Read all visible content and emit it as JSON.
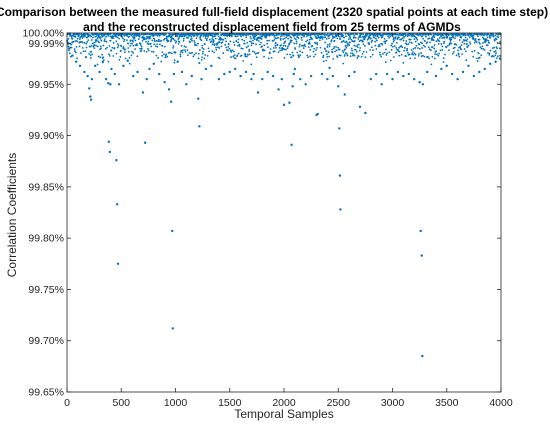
{
  "chart_data": {
    "type": "scatter",
    "title_lines": [
      "Comparison between the measured full-field displacement (2320 spatial points at each time step)",
      "and the reconstructed displacement field from 25 terms of AGMDs"
    ],
    "xlabel": "Temporal Samples",
    "ylabel": "Correlation Coefficients",
    "xlim": [
      0,
      4000
    ],
    "ylim": [
      99.65,
      100.0
    ],
    "xticks": [
      0,
      500,
      1000,
      1500,
      2000,
      2500,
      3000,
      3500,
      4000
    ],
    "xtick_labels": [
      "0",
      "500",
      "1000",
      "1500",
      "2000",
      "2500",
      "3000",
      "3500",
      "4000"
    ],
    "yticks": [
      99.65,
      99.7,
      99.75,
      99.8,
      99.85,
      99.9,
      99.95,
      99.99,
      100.0
    ],
    "ytick_labels": [
      "99.65%",
      "99.70%",
      "99.75%",
      "99.80%",
      "99.85%",
      "99.90%",
      "99.95%",
      "99.99%",
      "100.00%"
    ],
    "grid": false,
    "color": "#0072BD",
    "series": [
      {
        "name": "",
        "note_dense_band": "most samples lie between 99.975% and 99.999%",
        "x": [
          20,
          50,
          85,
          120,
          160,
          190,
          205,
          215,
          222,
          230,
          260,
          300,
          330,
          360,
          380,
          385,
          395,
          400,
          410,
          440,
          455,
          462,
          470,
          480,
          520,
          560,
          610,
          650,
          700,
          720,
          735,
          760,
          800,
          850,
          900,
          940,
          960,
          970,
          975,
          985,
          1020,
          1060,
          1100,
          1150,
          1210,
          1220,
          1240,
          1280,
          1330,
          1400,
          1450,
          1500,
          1550,
          1600,
          1650,
          1700,
          1720,
          1760,
          1800,
          1850,
          1900,
          1950,
          1980,
          2000,
          2050,
          2070,
          2080,
          2090,
          2100,
          2150,
          2200,
          2250,
          2300,
          2310,
          2350,
          2400,
          2420,
          2450,
          2500,
          2510,
          2515,
          2520,
          2560,
          2600,
          2650,
          2700,
          2750,
          2800,
          2850,
          2900,
          2950,
          3000,
          3050,
          3100,
          3150,
          3200,
          3250,
          3260,
          3270,
          3275,
          3280,
          3320,
          3400,
          3450,
          3500,
          3550,
          3600,
          3650,
          3700,
          3750,
          3800,
          3850,
          3900,
          3950,
          3990
        ],
        "y": [
          99.985,
          99.978,
          99.972,
          99.968,
          99.962,
          99.958,
          99.946,
          99.938,
          99.935,
          99.955,
          99.968,
          99.962,
          99.972,
          99.955,
          99.951,
          99.894,
          99.884,
          99.95,
          99.965,
          99.96,
          99.876,
          99.833,
          99.775,
          99.95,
          99.968,
          99.973,
          99.958,
          99.962,
          99.942,
          99.893,
          99.955,
          99.965,
          99.97,
          99.96,
          99.952,
          99.945,
          99.933,
          99.807,
          99.712,
          99.96,
          99.972,
          99.962,
          99.95,
          99.958,
          99.936,
          99.909,
          99.955,
          99.965,
          99.968,
          99.955,
          99.96,
          99.962,
          99.965,
          99.958,
          99.962,
          99.955,
          99.96,
          99.942,
          99.955,
          99.962,
          99.958,
          99.945,
          99.955,
          99.93,
          99.932,
          99.891,
          99.948,
          99.96,
          99.965,
          99.955,
          99.95,
          99.958,
          99.92,
          99.921,
          99.96,
          99.955,
          99.966,
          99.958,
          99.948,
          99.907,
          99.861,
          99.828,
          99.94,
          99.958,
          99.962,
          99.928,
          99.922,
          99.955,
          99.96,
          99.95,
          99.96,
          99.955,
          99.962,
          99.958,
          99.96,
          99.955,
          99.952,
          99.807,
          99.783,
          99.685,
          99.95,
          99.962,
          99.958,
          99.965,
          99.968,
          99.96,
          99.955,
          99.962,
          99.968,
          99.958,
          99.962,
          99.965,
          99.97,
          99.972,
          99.975
        ]
      }
    ]
  }
}
